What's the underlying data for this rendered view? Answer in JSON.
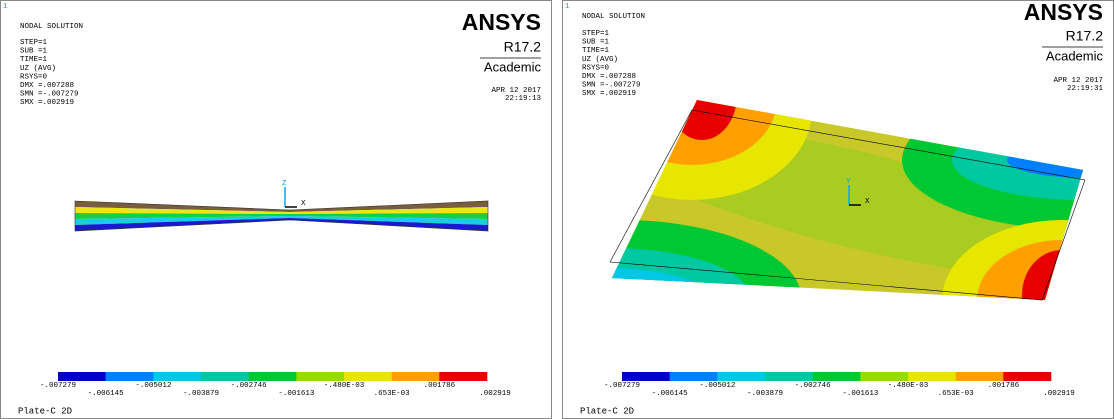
{
  "panels": [
    {
      "corner_number": "1",
      "title": "NODAL SOLUTION",
      "info": [
        "STEP=1",
        "SUB =1",
        "TIME=1",
        "UZ       (AVG)",
        "RSYS=0",
        "DMX =.007288",
        "SMN =-.007279",
        "SMX =.002919"
      ],
      "logo": {
        "brand": "ANSYS",
        "version": "R17.2",
        "edition": "Academic"
      },
      "date": "APR 12 2017",
      "time": "22:19:13",
      "axes": [
        "Z",
        "X"
      ],
      "legend": {
        "labels": [
          "-.007279",
          "-.006145",
          "-.005012",
          "-.003879",
          "-.002746",
          "-.001613",
          "-.480E-03",
          ".653E-03",
          ".001786",
          ".002919"
        ],
        "colors": [
          "#0000c8",
          "#0080ff",
          "#00c8e6",
          "#00c8a0",
          "#00c832",
          "#96dc00",
          "#e6e600",
          "#ffa000",
          "#e60000"
        ]
      },
      "footer": "Plate-C 2D"
    },
    {
      "corner_number": "1",
      "title": "NODAL SOLUTION",
      "info": [
        "STEP=1",
        "SUB =1",
        "TIME=1",
        "UZ       (AVG)",
        "RSYS=0",
        "DMX =.007288",
        "SMN =-.007279",
        "SMX =.002919"
      ],
      "logo": {
        "brand": "ANSYS",
        "version": "R17.2",
        "edition": "Academic"
      },
      "date": "APR 12 2017",
      "time": "22:19:31",
      "axes": [
        "Y",
        "X"
      ],
      "legend": {
        "labels": [
          "-.007279",
          "-.006145",
          "-.005012",
          "-.003879",
          "-.002746",
          "-.001613",
          "-.480E-03",
          ".653E-03",
          ".001786",
          ".002919"
        ],
        "colors": [
          "#0000c8",
          "#0080ff",
          "#00c8e6",
          "#00c8a0",
          "#00c832",
          "#96dc00",
          "#e6e600",
          "#ffa000",
          "#e60000"
        ]
      },
      "footer": "Plate-C 2D"
    }
  ]
}
